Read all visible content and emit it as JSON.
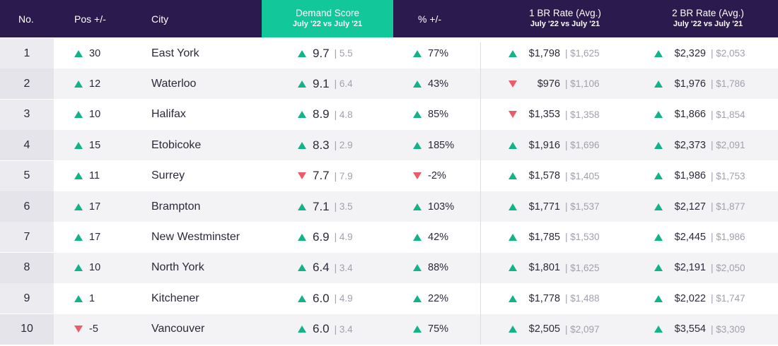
{
  "header": {
    "no": "No.",
    "pos": "Pos +/-",
    "city": "City",
    "demand_title": "Demand Score",
    "demand_sub": "July '22 vs July '21",
    "pct": "% +/-",
    "br1_title": "1 BR Rate (Avg.)",
    "br1_sub": "July '22 vs July '21",
    "br2_title": "2 BR Rate (Avg.)",
    "br2_sub": "July '22 vs July '21"
  },
  "colors": {
    "header_bg": "#2b1a4d",
    "highlight": "#12c79a",
    "up": "#12b389",
    "down": "#ec5b6a"
  },
  "chart_data": {
    "type": "table",
    "columns": [
      "No.",
      "Pos +/-",
      "City",
      "Demand Score (July '22)",
      "Demand Score (July '21)",
      "% +/-",
      "1 BR Rate July '22",
      "1 BR Rate July '21",
      "2 BR Rate July '22",
      "2 BR Rate July '21"
    ],
    "rows": [
      {
        "no": "1",
        "pos": "30",
        "pos_dir": "up",
        "city": "East York",
        "score": "9.7",
        "score_dir": "up",
        "score_prev": "| 5.5",
        "pct": "77%",
        "pct_dir": "up",
        "br1": "$1,798",
        "br1_dir": "up",
        "br1_prev": "| $1,625",
        "br2": "$2,329",
        "br2_dir": "up",
        "br2_prev": "| $2,053"
      },
      {
        "no": "2",
        "pos": "12",
        "pos_dir": "up",
        "city": "Waterloo",
        "score": "9.1",
        "score_dir": "up",
        "score_prev": "| 6.4",
        "pct": "43%",
        "pct_dir": "up",
        "br1": "$976",
        "br1_dir": "down",
        "br1_prev": "| $1,106",
        "br2": "$1,976",
        "br2_dir": "up",
        "br2_prev": "| $1,786"
      },
      {
        "no": "3",
        "pos": "10",
        "pos_dir": "up",
        "city": "Halifax",
        "score": "8.9",
        "score_dir": "up",
        "score_prev": "| 4.8",
        "pct": "85%",
        "pct_dir": "up",
        "br1": "$1,353",
        "br1_dir": "down",
        "br1_prev": "| $1,358",
        "br2": "$1,866",
        "br2_dir": "up",
        "br2_prev": "| $1,854"
      },
      {
        "no": "4",
        "pos": "15",
        "pos_dir": "up",
        "city": "Etobicoke",
        "score": "8.3",
        "score_dir": "up",
        "score_prev": "| 2.9",
        "pct": "185%",
        "pct_dir": "up",
        "br1": "$1,916",
        "br1_dir": "up",
        "br1_prev": "| $1,696",
        "br2": "$2,373",
        "br2_dir": "up",
        "br2_prev": "| $2,091"
      },
      {
        "no": "5",
        "pos": "11",
        "pos_dir": "up",
        "city": "Surrey",
        "score": "7.7",
        "score_dir": "down",
        "score_prev": "| 7.9",
        "pct": "-2%",
        "pct_dir": "down",
        "br1": "$1,578",
        "br1_dir": "up",
        "br1_prev": "| $1,405",
        "br2": "$1,986",
        "br2_dir": "up",
        "br2_prev": "| $1,753"
      },
      {
        "no": "6",
        "pos": "17",
        "pos_dir": "up",
        "city": "Brampton",
        "score": "7.1",
        "score_dir": "up",
        "score_prev": "| 3.5",
        "pct": "103%",
        "pct_dir": "up",
        "br1": "$1,771",
        "br1_dir": "up",
        "br1_prev": "| $1,537",
        "br2": "$2,127",
        "br2_dir": "up",
        "br2_prev": "| $1,877"
      },
      {
        "no": "7",
        "pos": "17",
        "pos_dir": "up",
        "city": "New Westminster",
        "score": "6.9",
        "score_dir": "up",
        "score_prev": "| 4.9",
        "pct": "42%",
        "pct_dir": "up",
        "br1": "$1,785",
        "br1_dir": "up",
        "br1_prev": "| $1,530",
        "br2": "$2,445",
        "br2_dir": "up",
        "br2_prev": "| $1,986"
      },
      {
        "no": "8",
        "pos": "10",
        "pos_dir": "up",
        "city": "North York",
        "score": "6.4",
        "score_dir": "up",
        "score_prev": "| 3.4",
        "pct": "88%",
        "pct_dir": "up",
        "br1": "$1,801",
        "br1_dir": "up",
        "br1_prev": "| $1,625",
        "br2": "$2,191",
        "br2_dir": "up",
        "br2_prev": "| $2,050"
      },
      {
        "no": "9",
        "pos": "1",
        "pos_dir": "up",
        "city": "Kitchener",
        "score": "6.0",
        "score_dir": "up",
        "score_prev": "| 4.9",
        "pct": "22%",
        "pct_dir": "up",
        "br1": "$1,778",
        "br1_dir": "up",
        "br1_prev": "| $1,488",
        "br2": "$2,022",
        "br2_dir": "up",
        "br2_prev": "| $1,747"
      },
      {
        "no": "10",
        "pos": "-5",
        "pos_dir": "down",
        "city": "Vancouver",
        "score": "6.0",
        "score_dir": "up",
        "score_prev": "| 3.4",
        "pct": "75%",
        "pct_dir": "up",
        "br1": "$2,505",
        "br1_dir": "up",
        "br1_prev": "| $2,097",
        "br2": "$3,554",
        "br2_dir": "up",
        "br2_prev": "| $3,309"
      }
    ]
  }
}
